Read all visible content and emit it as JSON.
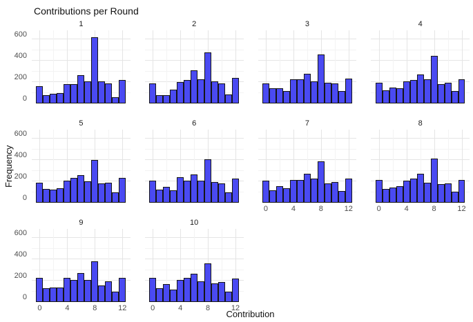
{
  "title": "Contributions per Round",
  "colors": {
    "bar_fill": "#4a4af2",
    "bar_border": "#151515",
    "grid_major": "#e4e4e4",
    "grid_minor": "#f3f3f3",
    "tick_label": "#4d4d4d",
    "strip_label": "#1a1a1a",
    "background": "#ffffff"
  },
  "chart_data": {
    "type": "bar",
    "subtype": "faceted-histogram",
    "title": "Contributions per Round",
    "xlabel": "Contribution",
    "ylabel": "Frequency",
    "x": [
      0,
      1,
      2,
      3,
      4,
      5,
      6,
      7,
      8,
      9,
      10,
      11,
      12
    ],
    "x_ticks": [
      0,
      4,
      8,
      12
    ],
    "x_minor": [
      2,
      6,
      10
    ],
    "y_ticks": [
      0,
      200,
      400,
      600
    ],
    "y_minor": [
      100,
      300,
      500
    ],
    "ylim": [
      0,
      687
    ],
    "xlim": [
      -1.15,
      13.15
    ],
    "grid": "on",
    "legend": "none",
    "facets": [
      {
        "label": "1",
        "values": [
          160,
          75,
          90,
          95,
          180,
          180,
          265,
          205,
          625,
          210,
          190,
          60,
          220
        ],
        "show_x_axis": false,
        "show_y_axis": true
      },
      {
        "label": "2",
        "values": [
          185,
          80,
          80,
          130,
          200,
          220,
          310,
          230,
          480,
          210,
          185,
          85,
          240
        ],
        "show_x_axis": false,
        "show_y_axis": false
      },
      {
        "label": "3",
        "values": [
          185,
          140,
          145,
          115,
          225,
          225,
          280,
          210,
          460,
          195,
          190,
          120,
          235
        ],
        "show_x_axis": false,
        "show_y_axis": false
      },
      {
        "label": "4",
        "values": [
          195,
          125,
          150,
          140,
          210,
          220,
          270,
          230,
          450,
          180,
          195,
          120,
          230
        ],
        "show_x_axis": false,
        "show_y_axis": false
      },
      {
        "label": "5",
        "values": [
          190,
          130,
          125,
          135,
          205,
          235,
          260,
          200,
          400,
          180,
          190,
          100,
          235
        ],
        "show_x_axis": false,
        "show_y_axis": true
      },
      {
        "label": "6",
        "values": [
          205,
          125,
          150,
          120,
          240,
          205,
          265,
          210,
          410,
          195,
          180,
          100,
          225
        ],
        "show_x_axis": false,
        "show_y_axis": false
      },
      {
        "label": "7",
        "values": [
          205,
          115,
          155,
          135,
          215,
          215,
          275,
          225,
          390,
          180,
          195,
          110,
          225
        ],
        "show_x_axis": true,
        "show_y_axis": false
      },
      {
        "label": "8",
        "values": [
          215,
          130,
          145,
          155,
          205,
          230,
          275,
          190,
          415,
          175,
          180,
          105,
          215
        ],
        "show_x_axis": true,
        "show_y_axis": false
      },
      {
        "label": "9",
        "values": [
          230,
          130,
          135,
          135,
          225,
          210,
          270,
          205,
          385,
          155,
          195,
          100,
          230
        ],
        "show_x_axis": true,
        "show_y_axis": true
      },
      {
        "label": "10",
        "values": [
          225,
          130,
          170,
          120,
          205,
          230,
          265,
          195,
          360,
          175,
          185,
          100,
          220
        ],
        "show_x_axis": true,
        "show_y_axis": false
      }
    ]
  }
}
